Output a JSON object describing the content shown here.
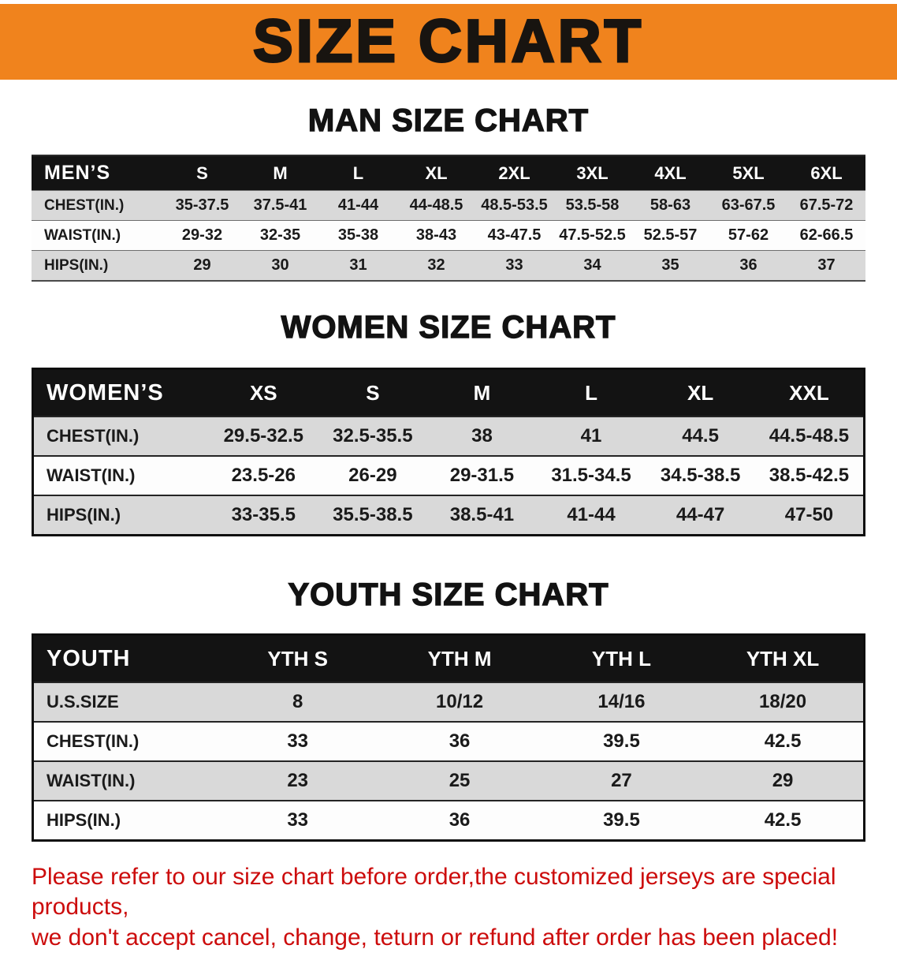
{
  "banner": {
    "title": "SIZE CHART",
    "bg_color": "#f0831d",
    "text_color": "#181410"
  },
  "colors": {
    "stripe_gray": "#d9d9d9",
    "table_header_bg": "#131313",
    "table_header_text": "#ffffff",
    "disclaimer_red": "#cc0c0c"
  },
  "chart_data": [
    {
      "type": "table",
      "title": "MAN SIZE CHART",
      "columns": [
        "MEN’S",
        "S",
        "M",
        "L",
        "XL",
        "2XL",
        "3XL",
        "4XL",
        "5XL",
        "6XL"
      ],
      "rows": [
        [
          "CHEST(IN.)",
          "35-37.5",
          "37.5-41",
          "41-44",
          "44-48.5",
          "48.5-53.5",
          "53.5-58",
          "58-63",
          "63-67.5",
          "67.5-72"
        ],
        [
          "WAIST(IN.)",
          "29-32",
          "32-35",
          "35-38",
          "38-43",
          "43-47.5",
          "47.5-52.5",
          "52.5-57",
          "57-62",
          "62-66.5"
        ],
        [
          "HIPS(IN.)",
          "29",
          "30",
          "31",
          "32",
          "33",
          "34",
          "35",
          "36",
          "37"
        ]
      ]
    },
    {
      "type": "table",
      "title": "WOMEN SIZE CHART",
      "columns": [
        "WOMEN’S",
        "XS",
        "S",
        "M",
        "L",
        "XL",
        "XXL"
      ],
      "rows": [
        [
          "CHEST(IN.)",
          "29.5-32.5",
          "32.5-35.5",
          "38",
          "41",
          "44.5",
          "44.5-48.5"
        ],
        [
          "WAIST(IN.)",
          "23.5-26",
          "26-29",
          "29-31.5",
          "31.5-34.5",
          "34.5-38.5",
          "38.5-42.5"
        ],
        [
          "HIPS(IN.)",
          "33-35.5",
          "35.5-38.5",
          "38.5-41",
          "41-44",
          "44-47",
          "47-50"
        ]
      ]
    },
    {
      "type": "table",
      "title": "YOUTH SIZE CHART",
      "columns": [
        "YOUTH",
        "YTH S",
        "YTH M",
        "YTH L",
        "YTH XL"
      ],
      "rows": [
        [
          "U.S.SIZE",
          "8",
          "10/12",
          "14/16",
          "18/20"
        ],
        [
          "CHEST(IN.)",
          "33",
          "36",
          "39.5",
          "42.5"
        ],
        [
          "WAIST(IN.)",
          "23",
          "25",
          "27",
          "29"
        ],
        [
          "HIPS(IN.)",
          "33",
          "36",
          "39.5",
          "42.5"
        ]
      ]
    }
  ],
  "disclaimer": {
    "line1": "Please refer to our size chart before order,the customized jerseys are special products,",
    "line2": "we don't accept cancel, change, teturn or refund after order has been placed!"
  }
}
